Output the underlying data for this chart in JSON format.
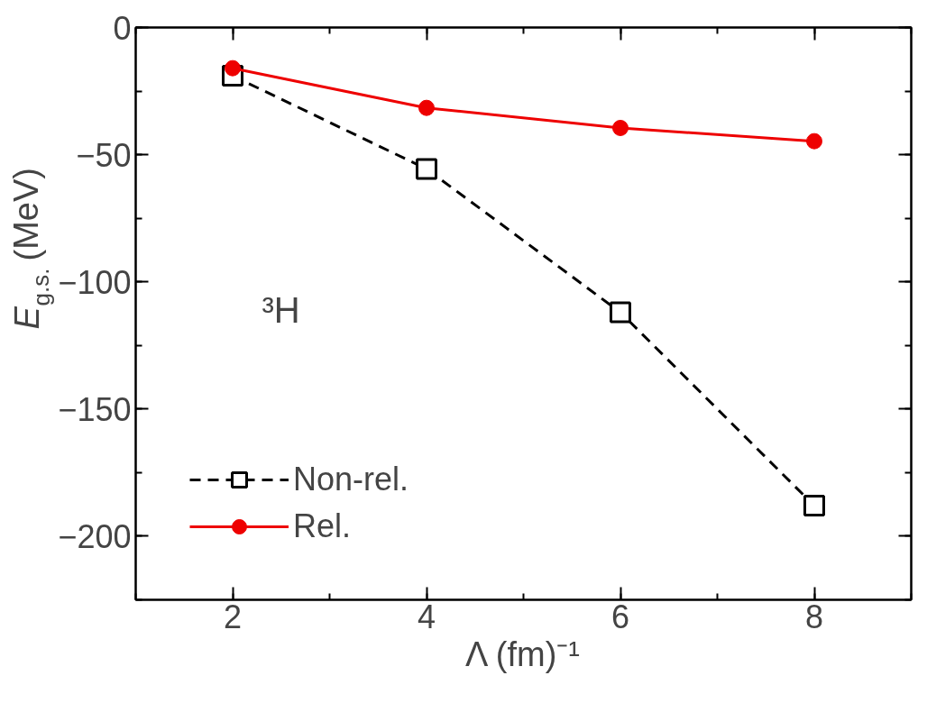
{
  "chart_data": {
    "type": "line",
    "xlabel": "Λ (fm)⁻¹",
    "ylabel": "E$_{g.s.}$ (MeV)",
    "x": [
      2,
      4,
      6,
      8
    ],
    "series": [
      {
        "name": "Non-rel.",
        "color": "#000000",
        "values": [
          -19,
          -55.6,
          -112,
          -188
        ],
        "marker": "square",
        "line_style": "dashed"
      },
      {
        "name": "Rel.",
        "color": "#ee0000",
        "values": [
          -16,
          -31.6,
          -39.5,
          -44.7
        ],
        "marker": "circle",
        "line_style": "solid"
      }
    ],
    "xlim": [
      1,
      9
    ],
    "xticks": [
      2,
      4,
      6,
      8
    ],
    "ylim": [
      -225,
      0
    ],
    "yticks": [
      -200,
      -150,
      -100,
      -50,
      0
    ],
    "annotations": [
      "³H"
    ],
    "legend": "bottom left",
    "grid": false
  }
}
